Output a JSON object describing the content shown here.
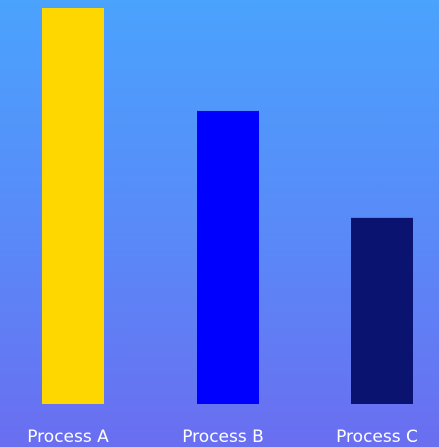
{
  "chart_data": {
    "type": "bar",
    "categories": [
      "Process A",
      "Process B",
      "Process C"
    ],
    "values": [
      100,
      74,
      47
    ],
    "ylim": [
      0,
      100
    ],
    "grid": false,
    "colors": [
      "#ffd700",
      "#0000ff",
      "#0a1470"
    ]
  }
}
